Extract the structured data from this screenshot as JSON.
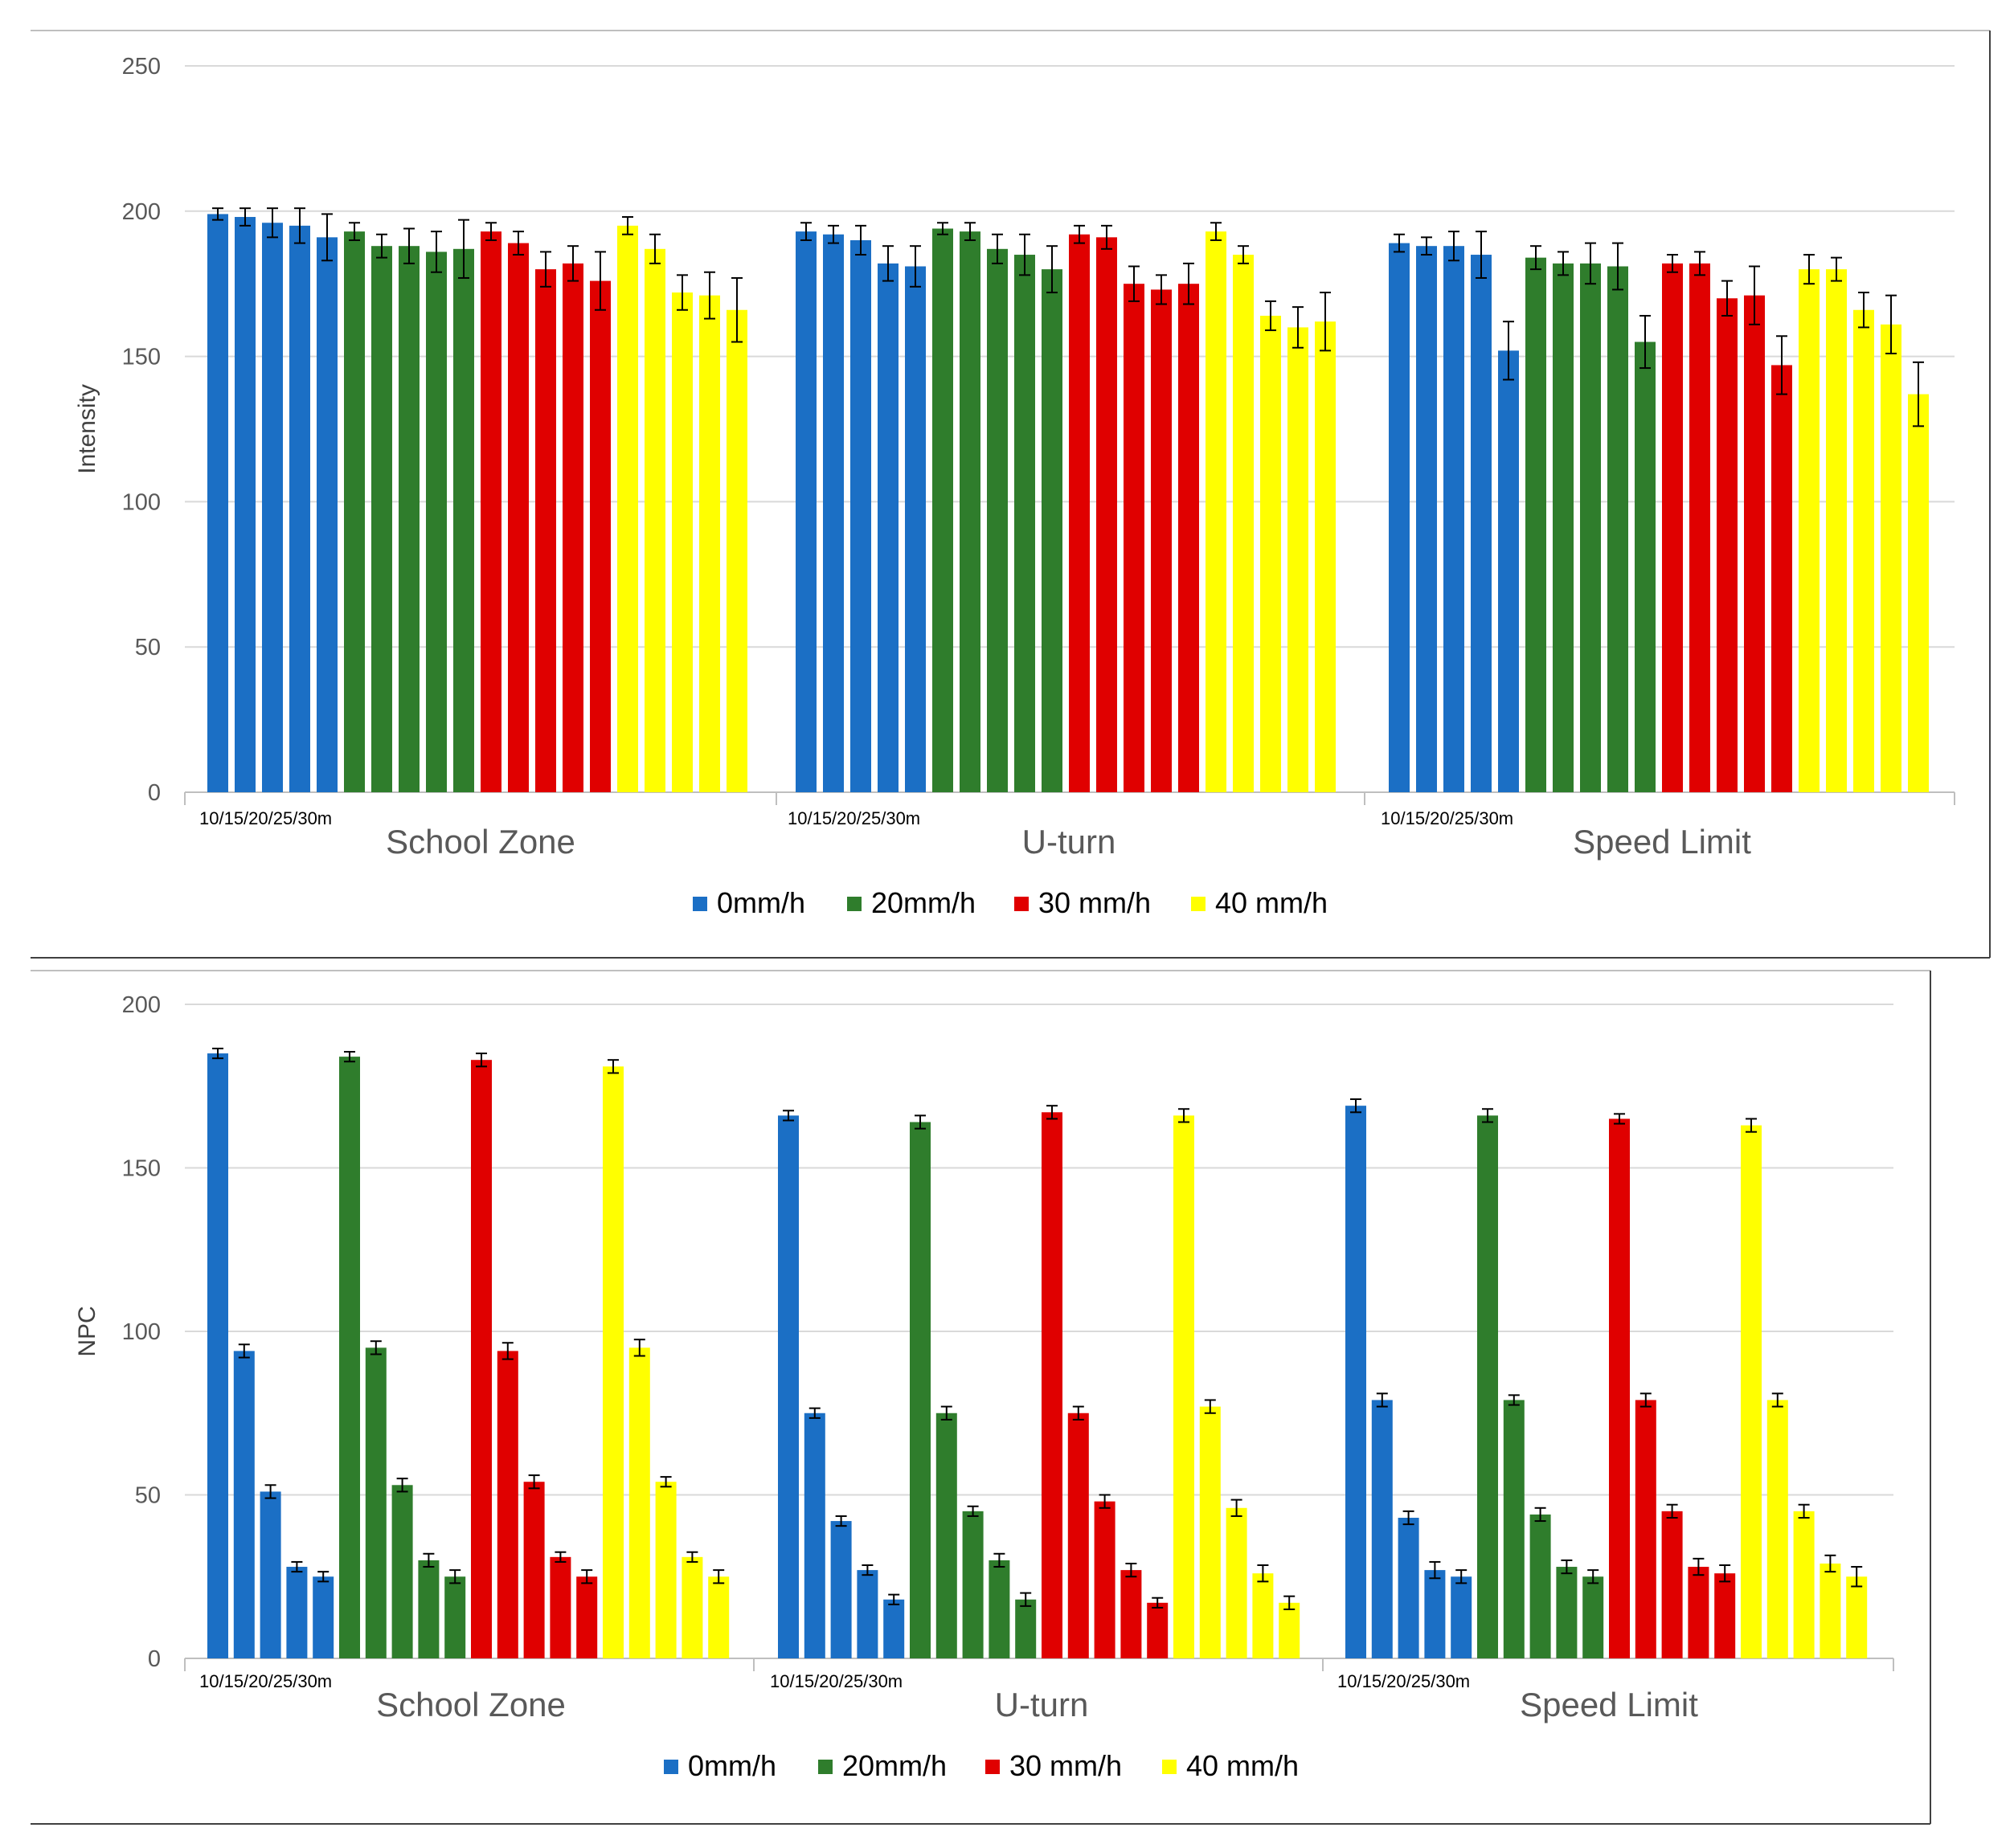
{
  "colors": {
    "0mm/h": "#1b6fc5",
    "20mm/h": "#2f7d2c",
    "30 mm/h": "#e00000",
    "40 mm/h": "#ffff00"
  },
  "chart_data": [
    {
      "type": "bar",
      "title": "",
      "xlabel": "",
      "ylabel": "Intensity",
      "ylim": [
        0,
        250
      ],
      "yticks": [
        "0",
        "50",
        "100",
        "150",
        "200",
        "250"
      ],
      "grid": true,
      "legend_position": "bottom",
      "groups": [
        "School Zone",
        "U-turn",
        "Speed Limit"
      ],
      "group_sublabel": "10/15/20/25/30m",
      "distances": [
        "10m",
        "15m",
        "20m",
        "25m",
        "30m"
      ],
      "series": [
        {
          "name": "0mm/h",
          "values": [
            [
              199,
              198,
              196,
              195,
              191
            ],
            [
              193,
              192,
              190,
              182,
              181
            ],
            [
              189,
              188,
              188,
              185,
              152
            ]
          ],
          "errors": [
            [
              2,
              3,
              5,
              6,
              8
            ],
            [
              3,
              3,
              5,
              6,
              7
            ],
            [
              3,
              3,
              5,
              8,
              10
            ]
          ]
        },
        {
          "name": "20mm/h",
          "values": [
            [
              193,
              188,
              188,
              186,
              187
            ],
            [
              194,
              193,
              187,
              185,
              180
            ],
            [
              184,
              182,
              182,
              181,
              155
            ]
          ],
          "errors": [
            [
              3,
              4,
              6,
              7,
              10
            ],
            [
              2,
              3,
              5,
              7,
              8
            ],
            [
              4,
              4,
              7,
              8,
              9
            ]
          ]
        },
        {
          "name": "30 mm/h",
          "values": [
            [
              193,
              189,
              180,
              182,
              176
            ],
            [
              192,
              191,
              175,
              173,
              175
            ],
            [
              182,
              182,
              170,
              171,
              147
            ]
          ],
          "errors": [
            [
              3,
              4,
              6,
              6,
              10
            ],
            [
              3,
              4,
              6,
              5,
              7
            ],
            [
              3,
              4,
              6,
              10,
              10
            ]
          ]
        },
        {
          "name": "40 mm/h",
          "values": [
            [
              195,
              187,
              172,
              171,
              166
            ],
            [
              193,
              185,
              164,
              160,
              162
            ],
            [
              180,
              180,
              166,
              161,
              137
            ]
          ],
          "errors": [
            [
              3,
              5,
              6,
              8,
              11
            ],
            [
              3,
              3,
              5,
              7,
              10
            ],
            [
              5,
              4,
              6,
              10,
              11
            ]
          ]
        }
      ]
    },
    {
      "type": "bar",
      "title": "",
      "xlabel": "",
      "ylabel": "NPC",
      "ylim": [
        0,
        200
      ],
      "yticks": [
        "0",
        "50",
        "100",
        "150",
        "200"
      ],
      "grid": true,
      "legend_position": "bottom",
      "groups": [
        "School Zone",
        "U-turn",
        "Speed Limit"
      ],
      "group_sublabel": "10/15/20/25/30m",
      "distances": [
        "10m",
        "15m",
        "20m",
        "25m",
        "30m"
      ],
      "series": [
        {
          "name": "0mm/h",
          "values": [
            [
              185,
              94,
              51,
              28,
              25
            ],
            [
              166,
              75,
              42,
              27,
              18
            ],
            [
              169,
              79,
              43,
              27,
              25
            ]
          ],
          "errors": [
            [
              1.5,
              2,
              2,
              1.5,
              1.5
            ],
            [
              1.5,
              1.5,
              1.5,
              1.5,
              1.5
            ],
            [
              2,
              2,
              2,
              2.5,
              2
            ]
          ]
        },
        {
          "name": "20mm/h",
          "values": [
            [
              184,
              95,
              53,
              30,
              25
            ],
            [
              164,
              75,
              45,
              30,
              18
            ],
            [
              166,
              79,
              44,
              28,
              25
            ]
          ],
          "errors": [
            [
              1.5,
              2,
              2,
              2,
              2
            ],
            [
              2,
              2,
              1.5,
              2,
              2
            ],
            [
              2,
              1.5,
              2,
              2,
              2
            ]
          ]
        },
        {
          "name": "30 mm/h",
          "values": [
            [
              183,
              94,
              54,
              31,
              25
            ],
            [
              167,
              75,
              48,
              27,
              17
            ],
            [
              165,
              79,
              45,
              28,
              26
            ]
          ],
          "errors": [
            [
              2,
              2.5,
              2,
              1.5,
              2
            ],
            [
              2,
              2,
              2,
              2,
              1.5
            ],
            [
              1.5,
              2,
              2,
              2.5,
              2.5
            ]
          ]
        },
        {
          "name": "40 mm/h",
          "values": [
            [
              181,
              95,
              54,
              31,
              25
            ],
            [
              166,
              77,
              46,
              26,
              17
            ],
            [
              163,
              79,
              45,
              29,
              25
            ]
          ],
          "errors": [
            [
              2,
              2.5,
              1.5,
              1.5,
              2
            ],
            [
              2,
              2,
              2.5,
              2.5,
              2
            ],
            [
              2,
              2,
              2,
              2.5,
              3
            ]
          ]
        }
      ]
    }
  ]
}
